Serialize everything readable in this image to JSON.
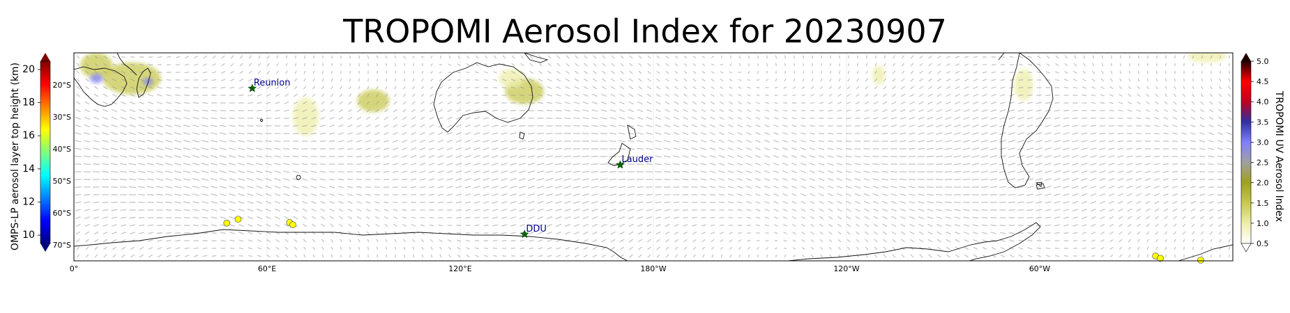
{
  "title": "TROPOMI Aerosol Index for 20230907",
  "left_colorbar": {
    "label": "OMPS-LP aerosol layer top height (km)",
    "ticks": [
      10,
      12,
      14,
      16,
      18,
      20
    ],
    "range": [
      9.5,
      20.5
    ],
    "colormap": [
      "#00007f",
      "#0000ff",
      "#0080ff",
      "#00ffff",
      "#7fff7f",
      "#ffff00",
      "#ff8000",
      "#ff0000",
      "#7f0000"
    ]
  },
  "right_colorbar": {
    "label": "TROPOMI UV Aerosol Index",
    "ticks": [
      "0.5",
      "1.0",
      "1.5",
      "2.0",
      "2.5",
      "3.0",
      "3.5",
      "4.0",
      "4.5",
      "5.0"
    ],
    "range": [
      0.5,
      5.0
    ],
    "colormap": [
      "#ffffff",
      "#eeeeaa",
      "#c8c850",
      "#a0a020",
      "#a0a0a0",
      "#8080ff",
      "#3030a0",
      "#c00020",
      "#ff0000",
      "#200000"
    ]
  },
  "latitude_labels": [
    "20°S",
    "30°S",
    "40°S",
    "50°S",
    "60°S",
    "70°S"
  ],
  "latitude_values": [
    -20,
    -30,
    -40,
    -50,
    -60,
    -70
  ],
  "longitude_labels": [
    "0°",
    "60°E",
    "120°E",
    "180°W",
    "120°W",
    "60°W"
  ],
  "longitude_values": [
    0,
    60,
    120,
    180,
    240,
    300
  ],
  "map_extent": {
    "lon": [
      0,
      360
    ],
    "lat": [
      -75,
      -10
    ]
  },
  "sites": [
    {
      "name": "Reunion",
      "lon": 55.4,
      "lat": -21.1
    },
    {
      "name": "Lauder",
      "lon": 169.7,
      "lat": -45.0
    },
    {
      "name": "DDU",
      "lon": 140.0,
      "lat": -66.7
    }
  ],
  "omps_points": [
    {
      "lon": 47.5,
      "lat": -63.2,
      "height_km": 16.5
    },
    {
      "lon": 51.0,
      "lat": -62.0,
      "height_km": 16.5
    },
    {
      "lon": 67.0,
      "lat": -63.0,
      "height_km": 16.5
    },
    {
      "lon": 68.0,
      "lat": -63.7,
      "height_km": 16.5
    },
    {
      "lon": 336.0,
      "lat": -73.5,
      "height_km": 16.5
    },
    {
      "lon": 337.5,
      "lat": -74.2,
      "height_km": 16.5
    },
    {
      "lon": 350.0,
      "lat": -74.8,
      "height_km": 16.5
    }
  ],
  "aerosol_patches": [
    {
      "lon": 7,
      "lat": -14,
      "rx": 5,
      "ry": 4,
      "ai": 1.6
    },
    {
      "lon": 18,
      "lat": -18,
      "rx": 9,
      "ry": 5,
      "ai": 1.3
    },
    {
      "lon": 7,
      "lat": -18,
      "rx": 2,
      "ry": 1.5,
      "ai": 3.0
    },
    {
      "lon": 23,
      "lat": -19,
      "rx": 1.5,
      "ry": 1.2,
      "ai": 3.0
    },
    {
      "lon": 72,
      "lat": -30,
      "rx": 4,
      "ry": 6,
      "ai": 1.0
    },
    {
      "lon": 93,
      "lat": -25,
      "rx": 5,
      "ry": 3.5,
      "ai": 1.4
    },
    {
      "lon": 140,
      "lat": -22,
      "rx": 6,
      "ry": 4,
      "ai": 1.5
    },
    {
      "lon": 136,
      "lat": -18,
      "rx": 4,
      "ry": 3,
      "ai": 1.2
    },
    {
      "lon": 352,
      "lat": -11,
      "rx": 6,
      "ry": 2,
      "ai": 1.2
    },
    {
      "lon": 295,
      "lat": -20,
      "rx": 3,
      "ry": 5,
      "ai": 1.1
    },
    {
      "lon": 250,
      "lat": -17,
      "rx": 2,
      "ry": 3,
      "ai": 0.9
    }
  ]
}
